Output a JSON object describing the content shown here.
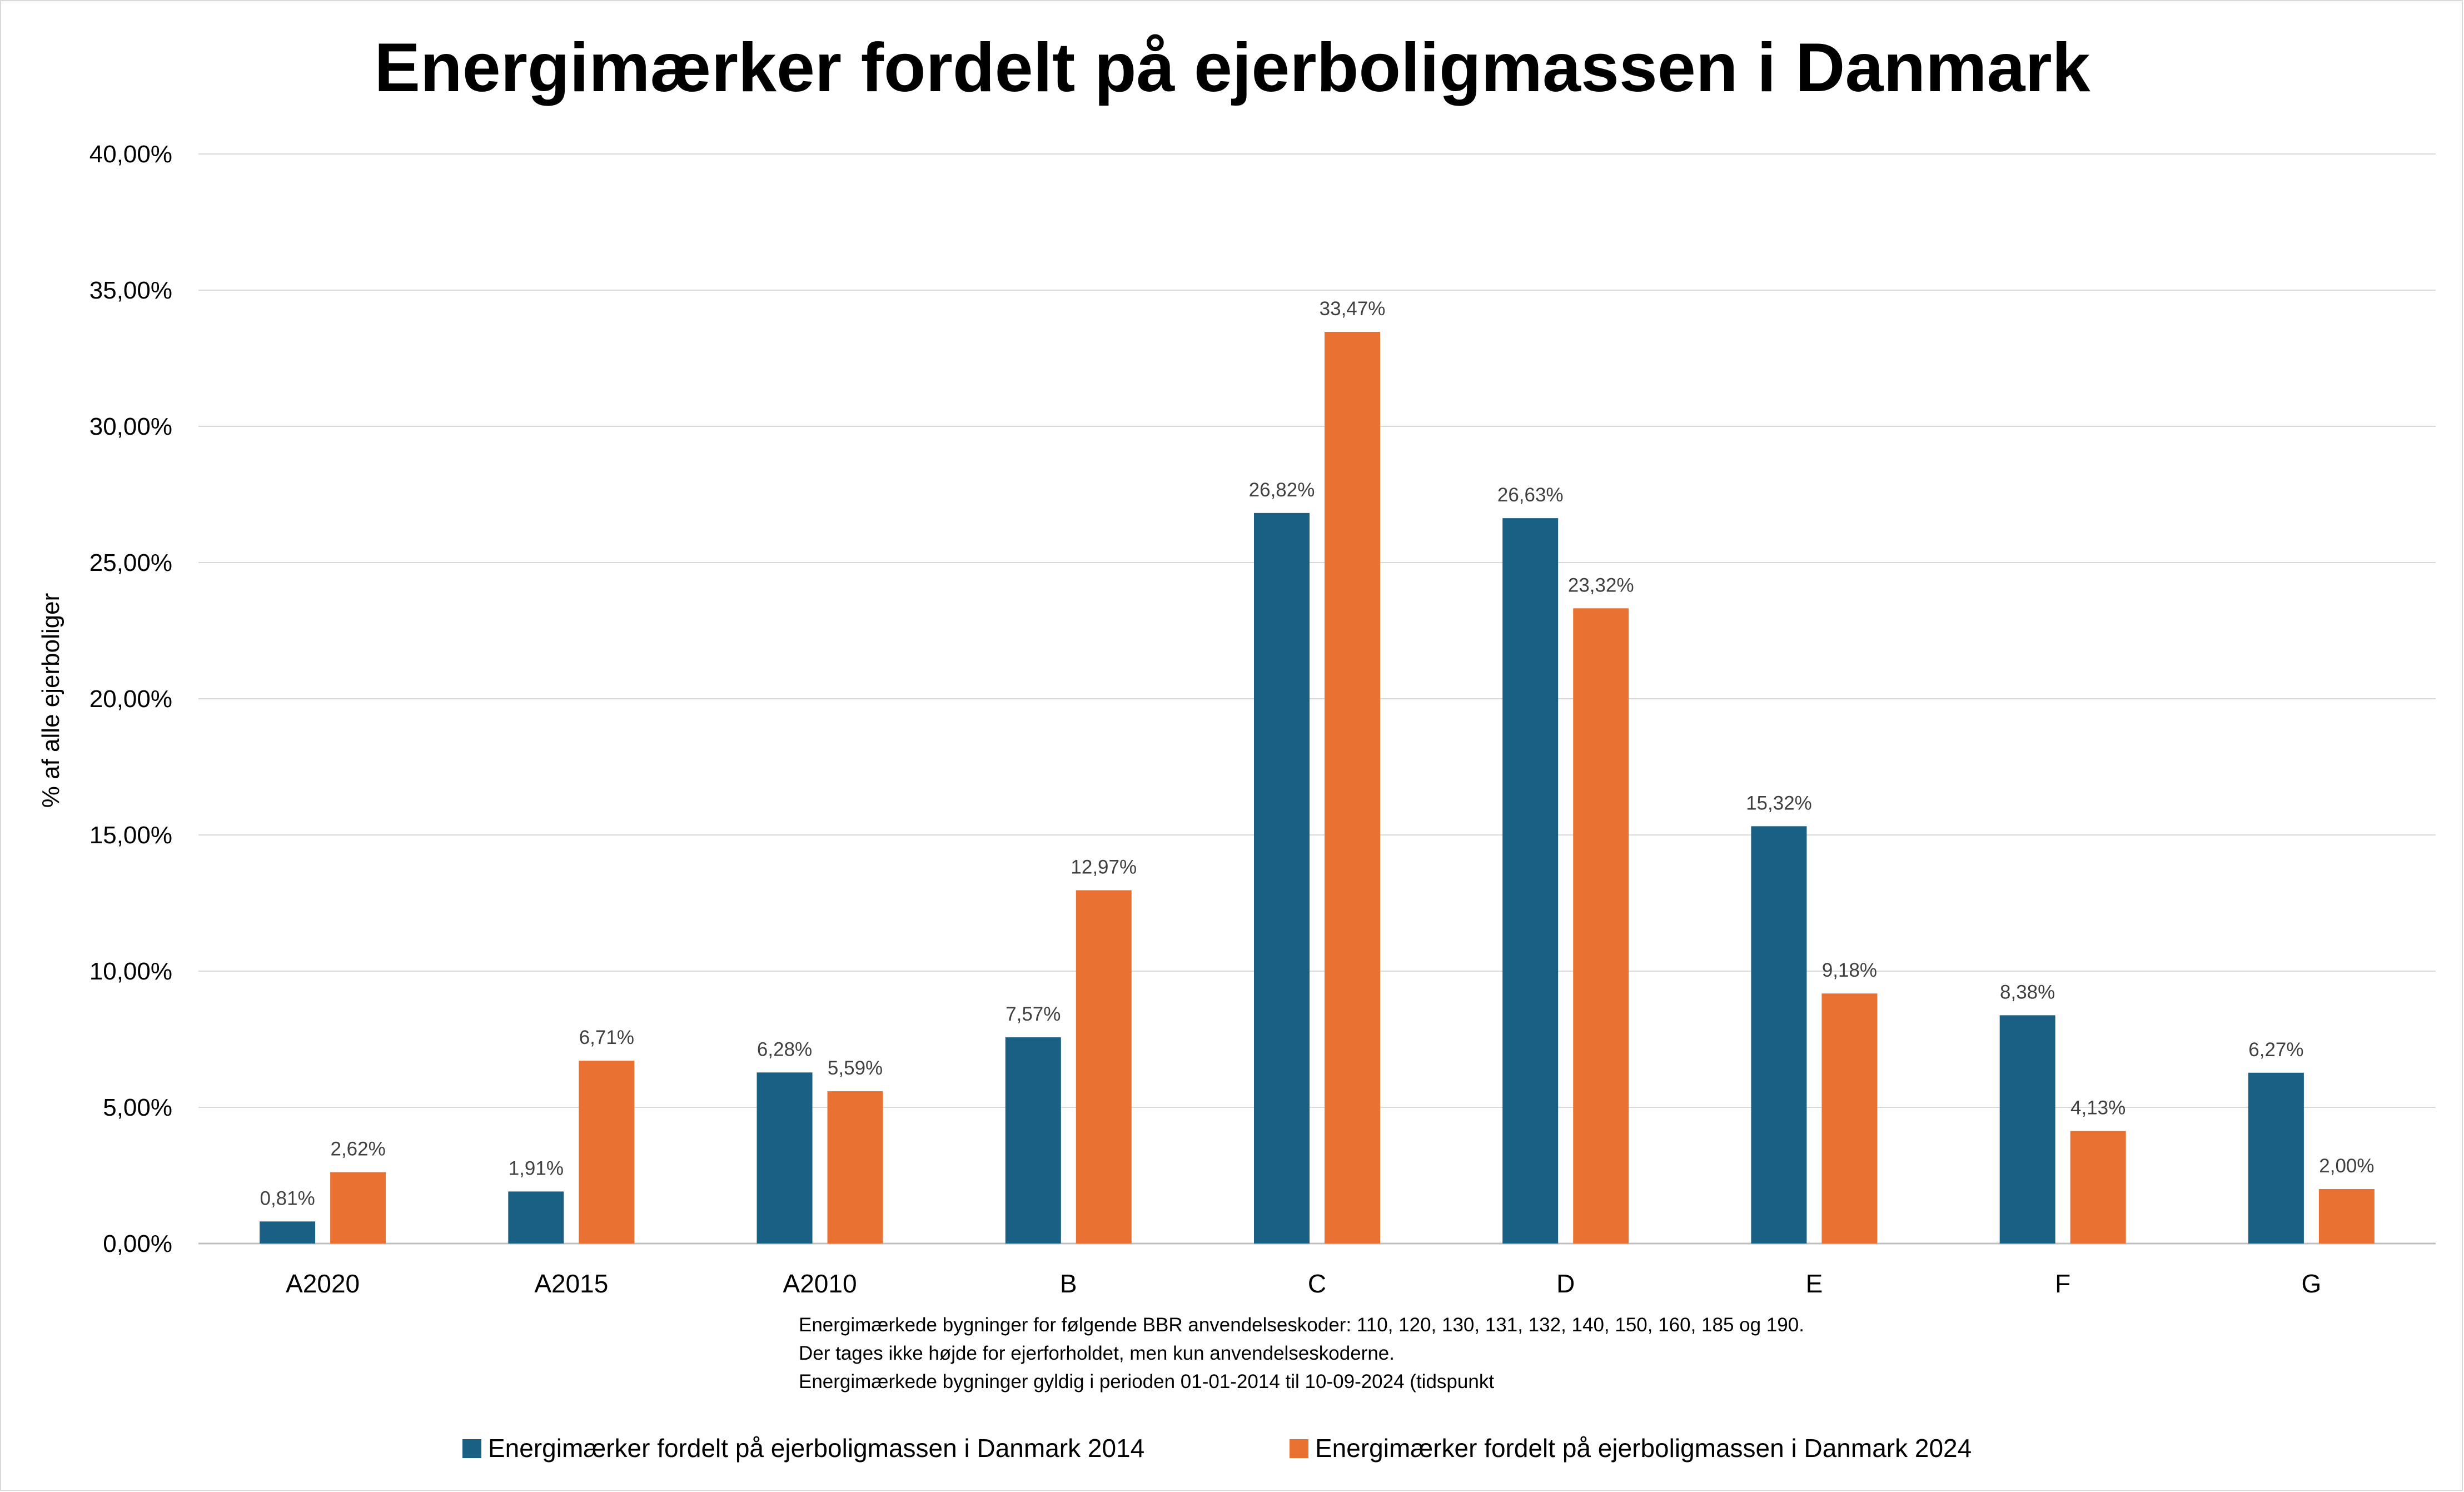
{
  "chart_data": {
    "type": "bar",
    "title": "Energimærker fordelt på ejerboligmassen i Danmark",
    "ylabel": "% af alle ejerboliger",
    "xlabel": "",
    "ylim": [
      0,
      40
    ],
    "y_ticks": [
      "0,00%",
      "5,00%",
      "10,00%",
      "15,00%",
      "20,00%",
      "25,00%",
      "30,00%",
      "35,00%",
      "40,00%"
    ],
    "y_tick_values": [
      0,
      5,
      10,
      15,
      20,
      25,
      30,
      35,
      40
    ],
    "grid": true,
    "legend_position": "bottom",
    "categories": [
      "A2020",
      "A2015",
      "A2010",
      "B",
      "C",
      "D",
      "E",
      "F",
      "G"
    ],
    "series": [
      {
        "name": "Energimærker fordelt på ejerboligmassen i Danmark 2014",
        "color": "#1a5f84",
        "values": [
          0.81,
          1.91,
          6.28,
          7.57,
          26.82,
          26.63,
          15.32,
          8.38,
          6.27
        ],
        "labels": [
          "0,81%",
          "1,91%",
          "6,28%",
          "7,57%",
          "26,82%",
          "26,63%",
          "15,32%",
          "8,38%",
          "6,27%"
        ]
      },
      {
        "name": "Energimærker fordelt på ejerboligmassen i Danmark 2024",
        "color": "#e97132",
        "values": [
          2.62,
          6.71,
          5.59,
          12.97,
          33.47,
          23.32,
          9.18,
          4.13,
          2.0
        ],
        "labels": [
          "2,62%",
          "6,71%",
          "5,59%",
          "12,97%",
          "33,47%",
          "23,32%",
          "9,18%",
          "4,13%",
          "2,00%"
        ]
      }
    ],
    "annotations": [
      "Energimærkede bygninger for følgende BBR anvendelseskoder: 110, 120, 130, 131, 132, 140, 150, 160, 185 og 190.",
      "Der tages ikke højde for ejerforholdet, men kun anvendelseskoderne.",
      "Energimærkede bygninger gyldig i perioden 01-01-2014 til 10-09-2024 (tidspunkt"
    ]
  }
}
